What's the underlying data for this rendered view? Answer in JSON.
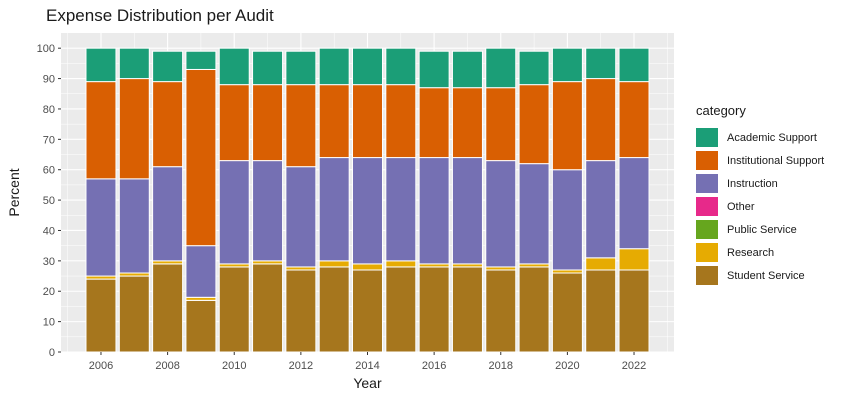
{
  "chart_data": {
    "type": "bar",
    "stacked": true,
    "title": "Expense Distribution per Audit",
    "xlabel": "Year",
    "ylabel": "Percent",
    "ylim": [
      0,
      105
    ],
    "yticks": [
      0,
      10,
      20,
      30,
      40,
      50,
      60,
      70,
      80,
      90,
      100
    ],
    "xticks": [
      2006,
      2008,
      2010,
      2012,
      2014,
      2016,
      2018,
      2020,
      2022
    ],
    "xlim": [
      2004.8,
      2023.2
    ],
    "categories": [
      2006,
      2007,
      2008,
      2009,
      2010,
      2011,
      2012,
      2013,
      2014,
      2015,
      2016,
      2017,
      2018,
      2019,
      2020,
      2021,
      2022
    ],
    "legend_title": "category",
    "legend_position": "right",
    "grid": true,
    "series": [
      {
        "name": "Student Service",
        "color": "#a6761d",
        "values": [
          24,
          25,
          29,
          17,
          28,
          29,
          27,
          28,
          27,
          28,
          28,
          28,
          27,
          28,
          26,
          27,
          27
        ]
      },
      {
        "name": "Research",
        "color": "#e6ab02",
        "values": [
          1,
          1,
          1,
          1,
          1,
          1,
          1,
          2,
          2,
          2,
          1,
          1,
          1,
          1,
          1,
          4,
          7
        ]
      },
      {
        "name": "Public Service",
        "color": "#66a61e",
        "values": [
          0,
          0,
          0,
          0,
          0,
          0,
          0,
          0,
          0,
          0,
          0,
          0,
          0,
          0,
          0,
          0,
          0
        ]
      },
      {
        "name": "Other",
        "color": "#e7298a",
        "values": [
          0,
          0,
          0,
          0,
          0,
          0,
          0,
          0,
          0,
          0,
          0,
          0,
          0,
          0,
          0,
          0,
          0
        ]
      },
      {
        "name": "Instruction",
        "color": "#7570b3",
        "values": [
          32,
          31,
          31,
          17,
          34,
          33,
          33,
          34,
          35,
          34,
          35,
          35,
          35,
          33,
          33,
          32,
          30
        ]
      },
      {
        "name": "Institutional Support",
        "color": "#d95f02",
        "values": [
          32,
          33,
          28,
          58,
          25,
          25,
          27,
          24,
          24,
          24,
          23,
          23,
          24,
          26,
          29,
          27,
          25
        ]
      },
      {
        "name": "Academic Support",
        "color": "#1b9e77",
        "values": [
          11,
          10,
          10,
          6,
          12,
          11,
          11,
          12,
          12,
          12,
          12,
          12,
          13,
          11,
          11,
          10,
          11
        ]
      }
    ],
    "legend_order": [
      "Academic Support",
      "Institutional Support",
      "Instruction",
      "Other",
      "Public Service",
      "Research",
      "Student Service"
    ]
  }
}
